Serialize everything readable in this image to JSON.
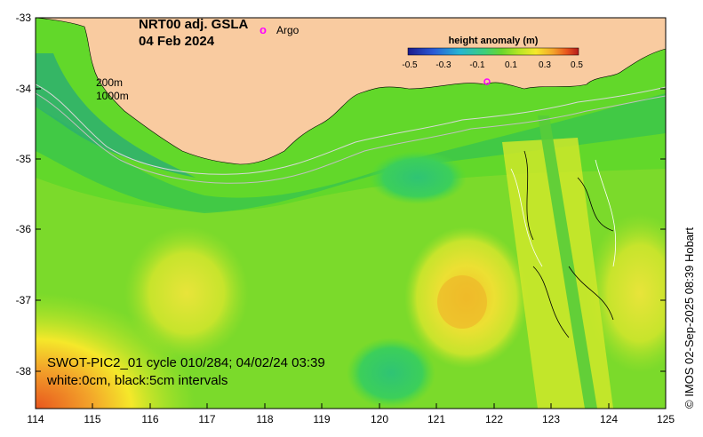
{
  "title": {
    "product": "NRT00 adj. GSLA",
    "date": "04 Feb 2024"
  },
  "legend": {
    "argo_symbol": "o",
    "argo_label": "Argo"
  },
  "colorbar": {
    "title": "height anomaly (m)",
    "ticks": [
      "-0.5",
      "-0.3",
      "-0.1",
      "0.1",
      "0.3",
      "0.5"
    ],
    "colors": [
      "#1a1a8c",
      "#2a5ad6",
      "#25b4d4",
      "#3ccf7a",
      "#6ad62c",
      "#b6e624",
      "#f5e82a",
      "#f3a42a",
      "#e8561e",
      "#b41a1a"
    ]
  },
  "contours": {
    "shelf_200": "200m",
    "shelf_1000": "1000m"
  },
  "axes": {
    "x_ticks": [
      "114",
      "115",
      "116",
      "117",
      "118",
      "119",
      "120",
      "121",
      "122",
      "123",
      "124",
      "125"
    ],
    "y_ticks": [
      "-33",
      "-34",
      "-35",
      "-36",
      "-37",
      "-38"
    ]
  },
  "swot": {
    "line1": "SWOT-PIC2_01 cycle 010/284; 04/02/24 03:39",
    "line2": "white:0cm, black:5cm intervals"
  },
  "credit": "© IMOS 02-Sep-2025 08:39 Hobart",
  "colors": {
    "land": "#f9cba0",
    "ocean_base": "#62d82a"
  }
}
